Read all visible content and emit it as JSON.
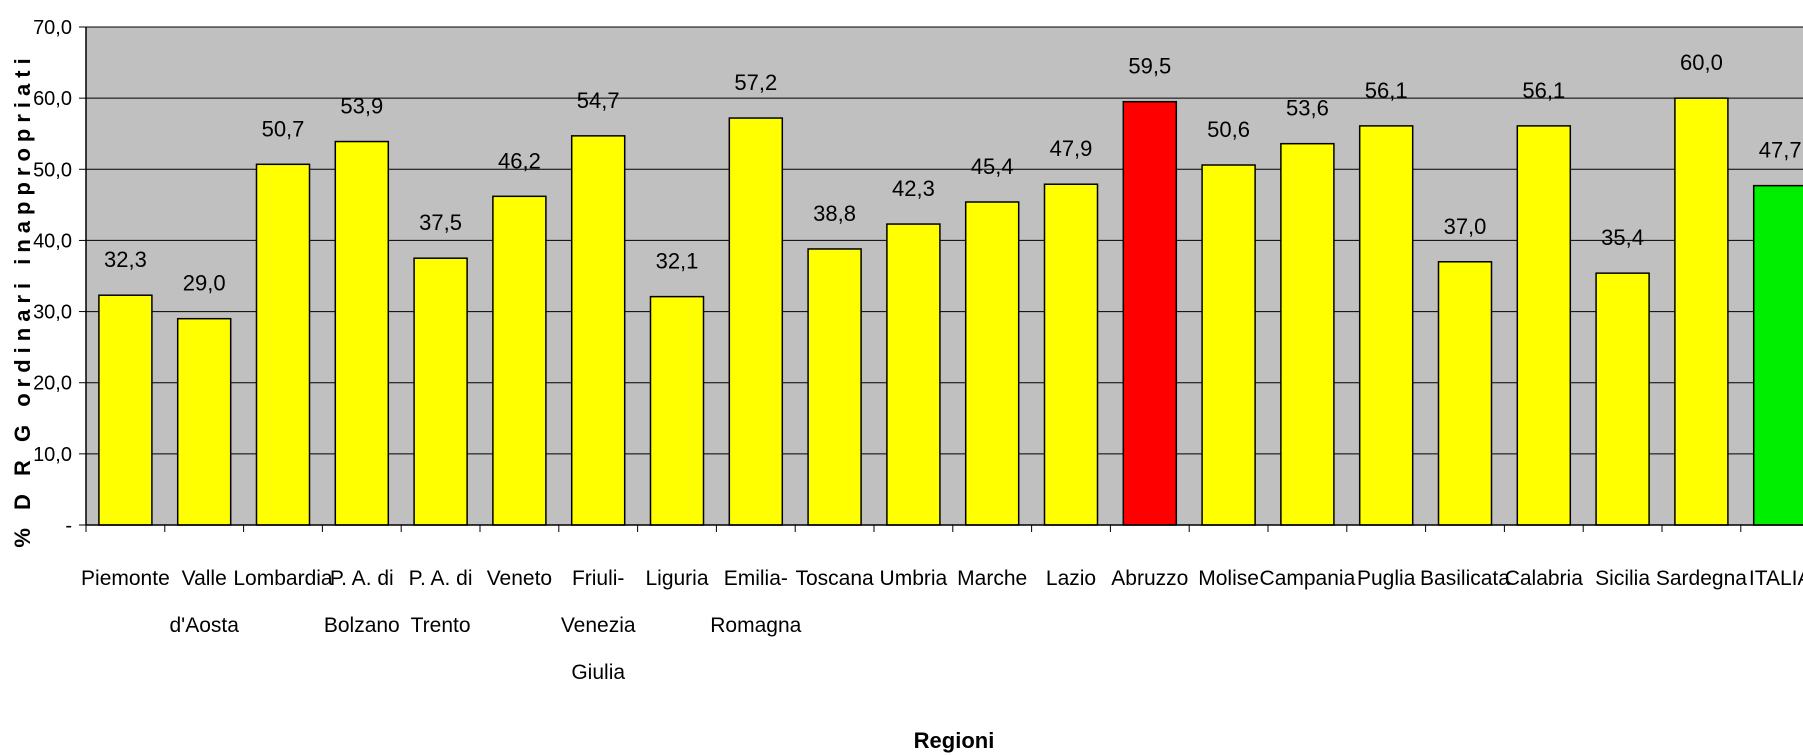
{
  "chart_data": {
    "type": "bar",
    "title": "",
    "xlabel": "Regioni",
    "ylabel": "% D R G ordinari inappropriati",
    "ylim": [
      0,
      70
    ],
    "yticks": [
      "-",
      "10,0",
      "20,0",
      "30,0",
      "40,0",
      "50,0",
      "60,0",
      "70,0"
    ],
    "grid": true,
    "legend": "none",
    "categories": [
      [
        "Piemonte"
      ],
      [
        "Valle",
        "d'Aosta"
      ],
      [
        "Lombardia"
      ],
      [
        "P. A. di",
        "Bolzano"
      ],
      [
        "P. A. di",
        "Trento"
      ],
      [
        "Veneto"
      ],
      [
        "Friuli-",
        "Venezia",
        "Giulia"
      ],
      [
        "Liguria"
      ],
      [
        "Emilia-",
        "Romagna"
      ],
      [
        "Toscana"
      ],
      [
        "Umbria"
      ],
      [
        "Marche"
      ],
      [
        "Lazio"
      ],
      [
        "Abruzzo"
      ],
      [
        "Molise"
      ],
      [
        "Campania"
      ],
      [
        "Puglia"
      ],
      [
        "Basilicata"
      ],
      [
        "Calabria"
      ],
      [
        "Sicilia"
      ],
      [
        "Sardegna"
      ],
      [
        "ITALIA"
      ]
    ],
    "values": [
      32.3,
      29.0,
      50.7,
      53.9,
      37.5,
      46.2,
      54.7,
      32.1,
      57.2,
      38.8,
      42.3,
      45.4,
      47.9,
      59.5,
      50.6,
      53.6,
      56.1,
      37.0,
      56.1,
      35.4,
      60.0,
      47.7
    ],
    "value_labels": [
      "32,3",
      "29,0",
      "50,7",
      "53,9",
      "37,5",
      "46,2",
      "54,7",
      "32,1",
      "57,2",
      "38,8",
      "42,3",
      "45,4",
      "47,9",
      "59,5",
      "50,6",
      "53,6",
      "56,1",
      "37,0",
      "56,1",
      "35,4",
      "60,0",
      "47,7"
    ],
    "colors": {
      "default_bar": "#ffff00",
      "highlight_bar": "#ff0000",
      "national_bar": "#00ee00",
      "plot_background": "#c0c0c0",
      "grid": "#000000"
    },
    "highlight": "Abruzzo",
    "national": "ITALIA"
  }
}
